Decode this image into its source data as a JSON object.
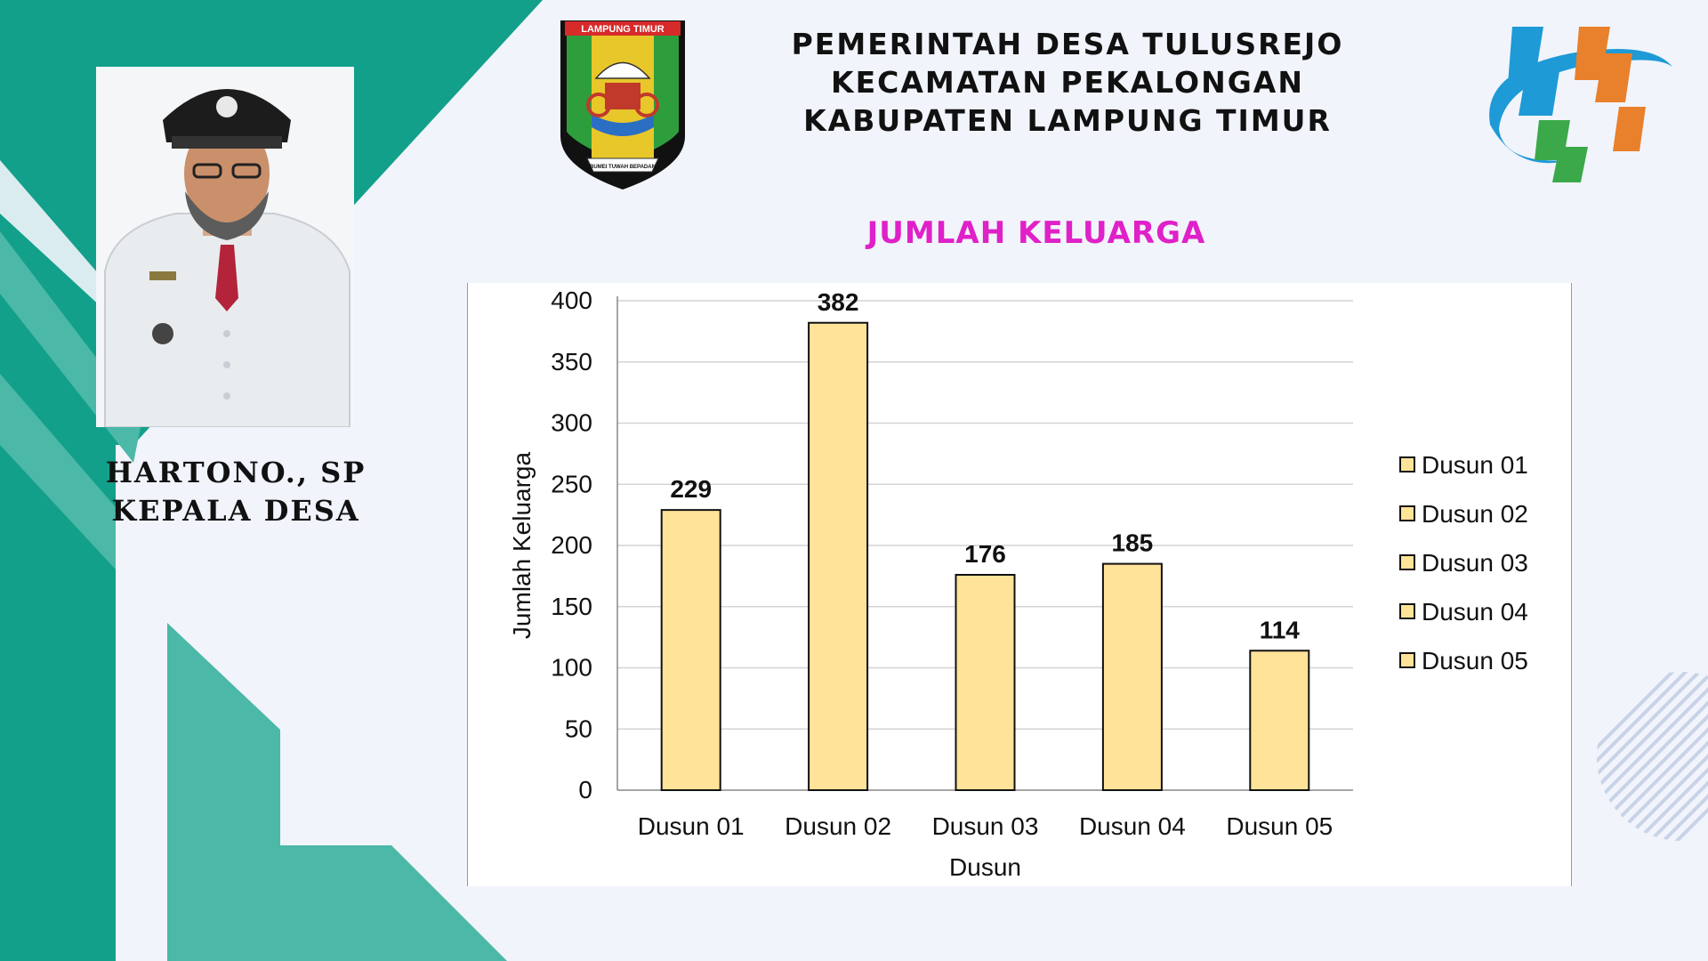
{
  "header": {
    "line1": "PEMERINTAH DESA TULUSREJO",
    "line2": "KECAMATAN PEKALONGAN",
    "line3": "KABUPATEN LAMPUNG TIMUR"
  },
  "crest": {
    "banner_text": "LAMPUNG TIMUR",
    "motto_text": "BUMEI TUWAH BEPADAN"
  },
  "person": {
    "name": "HARTONO., SP",
    "position": "KEPALA DESA"
  },
  "colors": {
    "teal_dark": "#13a08a",
    "teal_light": "#4cb8a8",
    "title_magenta": "#e020c8",
    "bar_fill": "#ffe399",
    "bps_blue": "#1e9ad6",
    "bps_orange": "#e9802b",
    "bps_green": "#3ba94a"
  },
  "chart_data": {
    "type": "bar",
    "title": "JUMLAH KELUARGA",
    "categories": [
      "Dusun 01",
      "Dusun 02",
      "Dusun 03",
      "Dusun 04",
      "Dusun 05"
    ],
    "values": [
      229,
      382,
      176,
      185,
      114
    ],
    "data_labels": [
      "229",
      "382",
      "176",
      "185",
      "114"
    ],
    "xlabel": "Dusun",
    "ylabel": "Jumlah Keluarga",
    "ylim": [
      0,
      400
    ],
    "yticks": [
      "0",
      "50",
      "100",
      "150",
      "200",
      "250",
      "300",
      "350",
      "400"
    ],
    "grid": true,
    "legend": {
      "position": "right",
      "entries": [
        "Dusun 01",
        "Dusun 02",
        "Dusun 03",
        "Dusun 04",
        "Dusun 05"
      ]
    }
  }
}
